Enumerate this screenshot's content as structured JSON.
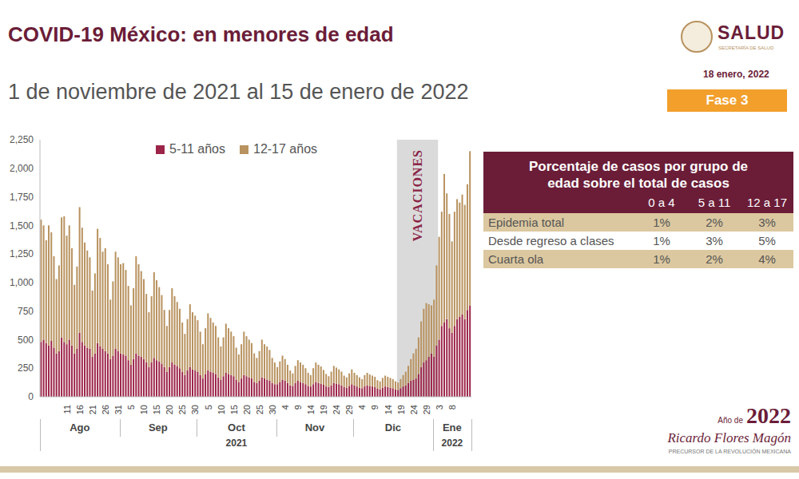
{
  "header": {
    "title": "COVID-19 México: en menores de edad",
    "subtitle": "1 de noviembre de 2021 al 15 de enero de 2022",
    "logo": "SALUD",
    "logo_subtitle": "SECRETARÍA DE SALUD",
    "date": "18 enero, 2022",
    "badge": "Fase 3"
  },
  "chart_data": {
    "type": "bar",
    "stacked": true,
    "grid": false,
    "legend": "top",
    "categories": [
      null,
      null,
      null,
      null,
      null,
      null,
      null,
      null,
      null,
      null,
      "11",
      null,
      null,
      null,
      null,
      "16",
      null,
      null,
      null,
      null,
      "21",
      null,
      null,
      null,
      null,
      "26",
      null,
      null,
      null,
      null,
      "31",
      null,
      null,
      null,
      null,
      "5",
      null,
      null,
      null,
      null,
      "10",
      null,
      null,
      null,
      null,
      "15",
      null,
      null,
      null,
      null,
      "20",
      null,
      null,
      null,
      null,
      "25",
      null,
      null,
      null,
      null,
      "30",
      null,
      null,
      null,
      null,
      "5",
      null,
      null,
      null,
      null,
      "10",
      null,
      null,
      null,
      null,
      "15",
      null,
      null,
      null,
      null,
      "20",
      null,
      null,
      null,
      null,
      "25",
      null,
      null,
      null,
      null,
      "30",
      null,
      null,
      null,
      null,
      "4",
      null,
      null,
      null,
      null,
      "9",
      null,
      null,
      null,
      null,
      "14",
      null,
      null,
      null,
      null,
      "19",
      null,
      null,
      null,
      null,
      "24",
      null,
      null,
      null,
      null,
      "29",
      null,
      null,
      null,
      null,
      "4",
      null,
      null,
      null,
      null,
      "9",
      null,
      null,
      null,
      null,
      "14",
      null,
      null,
      null,
      null,
      "19",
      null,
      null,
      null,
      null,
      "24",
      null,
      null,
      null,
      null,
      "29",
      null,
      null,
      null,
      null,
      "3",
      null,
      null,
      null,
      null,
      "8",
      null,
      null,
      null,
      null,
      null,
      null,
      null
    ],
    "series": [
      {
        "name": "5-11 años",
        "color": "#9c2449",
        "values": [
          480,
          500,
          470,
          450,
          490,
          430,
          380,
          400,
          520,
          480,
          460,
          500,
          450,
          380,
          420,
          560,
          480,
          450,
          430,
          420,
          350,
          380,
          470,
          440,
          420,
          400,
          380,
          330,
          360,
          420,
          400,
          380,
          370,
          360,
          320,
          280,
          330,
          380,
          360,
          350,
          330,
          300,
          260,
          300,
          340,
          320,
          310,
          290,
          260,
          220,
          260,
          300,
          280,
          270,
          250,
          220,
          190,
          230,
          260,
          240,
          230,
          220,
          190,
          160,
          200,
          230,
          220,
          210,
          200,
          170,
          150,
          180,
          210,
          200,
          190,
          180,
          150,
          130,
          160,
          190,
          180,
          170,
          160,
          130,
          120,
          140,
          170,
          160,
          150,
          140,
          120,
          110,
          110,
          130,
          150,
          140,
          120,
          100,
          95,
          120,
          140,
          130,
          120,
          110,
          95,
          90,
          110,
          130,
          120,
          115,
          105,
          90,
          85,
          100,
          120,
          115,
          110,
          100,
          85,
          80,
          95,
          110,
          100,
          90,
          80,
          75,
          90,
          100,
          95,
          90,
          85,
          70,
          65,
          80,
          90,
          85,
          80,
          75,
          65,
          60,
          75,
          90,
          100,
          120,
          140,
          150,
          160,
          200,
          260,
          300,
          320,
          350,
          380,
          350,
          450,
          500,
          620,
          650,
          680,
          600,
          560,
          620,
          680,
          700,
          720,
          680,
          760,
          800
        ]
      },
      {
        "name": "12-17 años",
        "color": "#b8925f",
        "values": [
          1070,
          1000,
          900,
          1050,
          950,
          800,
          650,
          750,
          1050,
          1100,
          950,
          1000,
          850,
          600,
          720,
          1100,
          1000,
          900,
          850,
          800,
          580,
          700,
          1000,
          950,
          850,
          900,
          780,
          520,
          650,
          850,
          820,
          780,
          800,
          750,
          650,
          520,
          620,
          850,
          800,
          750,
          700,
          600,
          480,
          580,
          750,
          700,
          650,
          600,
          500,
          400,
          500,
          650,
          600,
          560,
          520,
          430,
          360,
          450,
          550,
          500,
          480,
          450,
          380,
          300,
          400,
          500,
          470,
          440,
          420,
          350,
          290,
          340,
          430,
          400,
          380,
          350,
          280,
          240,
          300,
          380,
          350,
          330,
          310,
          250,
          220,
          260,
          330,
          300,
          290,
          270,
          220,
          190,
          150,
          180,
          210,
          190,
          160,
          130,
          110,
          150,
          180,
          170,
          160,
          140,
          115,
          100,
          140,
          170,
          160,
          150,
          130,
          110,
          95,
          120,
          150,
          140,
          130,
          120,
          100,
          90,
          110,
          130,
          110,
          100,
          90,
          80,
          100,
          110,
          100,
          95,
          90,
          75,
          70,
          85,
          95,
          90,
          85,
          80,
          70,
          65,
          80,
          100,
          120,
          150,
          190,
          230,
          260,
          320,
          400,
          470,
          500,
          460,
          420,
          500,
          700,
          900,
          1000,
          1300,
          1100,
          1000,
          800,
          1000,
          1050,
          1000,
          1050,
          1000,
          1100,
          1350
        ]
      }
    ],
    "months": [
      {
        "label": "Ago",
        "days": 31
      },
      {
        "label": "Sep",
        "days": 30
      },
      {
        "label": "Oct",
        "days": 31
      },
      {
        "label": "Nov",
        "days": 30
      },
      {
        "label": "Dic",
        "days": 31
      },
      {
        "label": "Ene",
        "days": 15
      }
    ],
    "years": [
      {
        "label": "2021",
        "months": 5
      },
      {
        "label": "2022",
        "months": 1
      }
    ],
    "ylim": [
      0,
      2250
    ],
    "yticks": [
      0,
      250,
      500,
      750,
      {
        "value": 1000,
        "label": "1,000"
      },
      {
        "value": 1250,
        "label": "1,250"
      },
      {
        "value": 1500,
        "label": "1,500"
      },
      {
        "value": 1750,
        "label": "1,750"
      },
      {
        "value": 2000,
        "label": "2,000"
      },
      {
        "value": 2250,
        "label": "2,250"
      }
    ],
    "annotations": [
      {
        "text": "VACACIONES",
        "x_start": 139,
        "x_end": 154
      }
    ]
  },
  "table": {
    "title": "Porcentaje de casos por grupo de edad sobre el total de casos",
    "columns": [
      "0 a 4",
      "5 a 11",
      "12 a 17"
    ],
    "rows": [
      [
        "Epidemia total",
        "1%",
        "2%",
        "3%"
      ],
      [
        "Desde regreso a clases",
        "1%",
        "3%",
        "5%"
      ],
      [
        "Cuarta ola",
        "1%",
        "2%",
        "4%"
      ]
    ]
  },
  "footer": {
    "year": "2022",
    "line1": "Año de",
    "name": "Ricardo Flores Magón",
    "tagline": "PRECURSOR DE LA REVOLUCIÓN MEXICANA"
  }
}
